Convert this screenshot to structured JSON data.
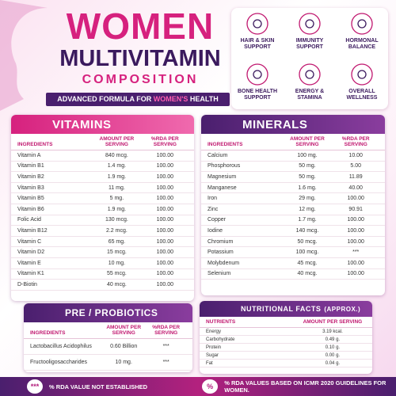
{
  "header": {
    "title": "WOMEN",
    "subtitle": "MULTIVITAMIN",
    "caption": "COMPOSITION",
    "tagline": [
      "ADVANCED FORMULA FOR",
      "WOMEN'S",
      "HEALTH"
    ]
  },
  "benefits": [
    "HAIR & SKIN SUPPORT",
    "IMMUNITY SUPPORT",
    "HORMONAL BALANCE",
    "BONE HEALTH SUPPORT",
    "ENERGY & STAMINA",
    "OVERALL WELLNESS"
  ],
  "vitamins": {
    "title": "VITAMINS",
    "headers": [
      "INGREDIENTS",
      "AMOUNT PER SERVING",
      "%RDA PER SERVING"
    ],
    "rows": [
      [
        "Vitamin A",
        "840 mcg.",
        "100.00"
      ],
      [
        "Vitamin B1",
        "1.4 mg.",
        "100.00"
      ],
      [
        "Vitamin B2",
        "1.9 mg.",
        "100.00"
      ],
      [
        "Vitamin B3",
        "11 mg.",
        "100.00"
      ],
      [
        "Vitamin B5",
        "5 mg.",
        "100.00"
      ],
      [
        "Vitamin B6",
        "1.9 mg.",
        "100.00"
      ],
      [
        "Folic Acid",
        "130 mcg.",
        "100.00"
      ],
      [
        "Vitamin B12",
        "2.2 mcg.",
        "100.00"
      ],
      [
        "Vitamin C",
        "65 mg.",
        "100.00"
      ],
      [
        "Vitamin D2",
        "15 mcg.",
        "100.00"
      ],
      [
        "Vitamin E",
        "10 mg.",
        "100.00"
      ],
      [
        "Vitamin K1",
        "55 mcg.",
        "100.00"
      ],
      [
        "D-Biotin",
        "40 mcg.",
        "100.00"
      ]
    ]
  },
  "minerals": {
    "title": "MINERALS",
    "headers": [
      "INGREDIENTS",
      "AMOUNT PER SERVING",
      "%RDA PER SERVING"
    ],
    "rows": [
      [
        "Calcium",
        "100 mg.",
        "10.00"
      ],
      [
        "Phosphorous",
        "50 mg.",
        "5.00"
      ],
      [
        "Magnesium",
        "50 mg.",
        "11.89"
      ],
      [
        "Manganese",
        "1.6 mg.",
        "40.00"
      ],
      [
        "Iron",
        "29 mg.",
        "100.00"
      ],
      [
        "Zinc",
        "12 mg.",
        "90.91"
      ],
      [
        "Copper",
        "1.7 mg.",
        "100.00"
      ],
      [
        "Iodine",
        "140 mcg.",
        "100.00"
      ],
      [
        "Chromium",
        "50 mcg.",
        "100.00"
      ],
      [
        "Potassium",
        "100 mcg.",
        "***"
      ],
      [
        "Molybdenum",
        "45 mcg.",
        "100.00"
      ],
      [
        "Selenium",
        "40 mcg.",
        "100.00"
      ]
    ]
  },
  "probiotics": {
    "title": "PRE / PROBIOTICS",
    "headers": [
      "INGREDIENTS",
      "AMOUNT PER SERVING",
      "%RDA PER SERVING"
    ],
    "rows": [
      [
        "Lactobacillus Acidophilus",
        "0.60 Billion",
        "***"
      ],
      [
        "Fructooligosaccharides",
        "10 mg.",
        "***"
      ]
    ]
  },
  "nutrition": {
    "title": "NUTRITIONAL FACTS",
    "suffix": "(APPROX.)",
    "headers": [
      "NUTRIENTS",
      "AMOUNT PER SERVING"
    ],
    "rows": [
      [
        "Energy",
        "3.19 kcal."
      ],
      [
        "Carbohydrate",
        "0.49 g."
      ],
      [
        "Protein",
        "0.10 g."
      ],
      [
        "Sugar",
        "0.00 g."
      ],
      [
        "Fat",
        "0.04 g."
      ]
    ]
  },
  "footer": {
    "left_symbol": "***",
    "left_text": "% RDA VALUE NOT ESTABLISHED",
    "right_symbol": "%",
    "right_text": "% RDA VALUES BASED ON ICMR 2020 GUIDELINES FOR WOMEN."
  }
}
